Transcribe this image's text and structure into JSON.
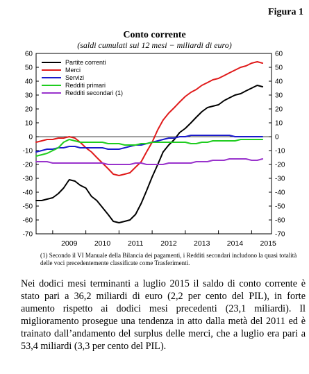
{
  "figure_label": "Figura 1",
  "title": "Conto corrente",
  "subtitle": "(saldi cumulati sui 12 mesi − miliardi di euro)",
  "footnote": "(1) Secondo il VI Manuale della Bilancia dei pagamenti, i Redditi secondari includono la quasi totalità delle voci precedentemente classificate come Trasferimenti.",
  "body_text": "Nei dodici mesi terminanti a luglio 2015 il saldo di conto corrente è stato pari a 36,2 miliardi di euro (2,2 per cento del PIL), in forte aumento rispetto ai dodici mesi precedenti (23,1 miliardi). Il miglioramento prosegue una tendenza in atto dalla metà del 2011 ed è trainato dall’andamento del surplus delle merci, che a luglio era pari a 53,4 miliardi (3,3 per cento del PIL).",
  "chart_data": {
    "type": "line",
    "title": "Conto corrente",
    "subtitle": "(saldi cumulati sui 12 mesi − miliardi di euro)",
    "x_ticks": [
      "2009",
      "2010",
      "2011",
      "2012",
      "2013",
      "2014",
      "2015"
    ],
    "x_range": [
      2008.5,
      2015.6
    ],
    "ylim": [
      -70,
      60
    ],
    "y_ticks": [
      -70,
      -60,
      -50,
      -40,
      -30,
      -20,
      -10,
      0,
      10,
      20,
      30,
      40,
      50,
      60
    ],
    "legend_position": "top-left",
    "grid": false,
    "series": [
      {
        "name": "Partite correnti",
        "color": "#000000",
        "points": [
          [
            2008.5,
            -46
          ],
          [
            2008.67,
            -46
          ],
          [
            2008.83,
            -45
          ],
          [
            2009.0,
            -44
          ],
          [
            2009.17,
            -41
          ],
          [
            2009.33,
            -37
          ],
          [
            2009.5,
            -31
          ],
          [
            2009.67,
            -32
          ],
          [
            2009.83,
            -35
          ],
          [
            2010.0,
            -37
          ],
          [
            2010.17,
            -43
          ],
          [
            2010.33,
            -46
          ],
          [
            2010.5,
            -51
          ],
          [
            2010.67,
            -56
          ],
          [
            2010.83,
            -61
          ],
          [
            2011.0,
            -62
          ],
          [
            2011.17,
            -61
          ],
          [
            2011.33,
            -60
          ],
          [
            2011.5,
            -56
          ],
          [
            2011.67,
            -48
          ],
          [
            2011.83,
            -39
          ],
          [
            2012.0,
            -29
          ],
          [
            2012.17,
            -20
          ],
          [
            2012.33,
            -11
          ],
          [
            2012.5,
            -6
          ],
          [
            2012.67,
            -2
          ],
          [
            2012.83,
            3
          ],
          [
            2013.0,
            6
          ],
          [
            2013.17,
            10
          ],
          [
            2013.33,
            14
          ],
          [
            2013.5,
            18
          ],
          [
            2013.67,
            21
          ],
          [
            2013.83,
            22
          ],
          [
            2014.0,
            23
          ],
          [
            2014.17,
            26
          ],
          [
            2014.33,
            28
          ],
          [
            2014.5,
            30
          ],
          [
            2014.67,
            31
          ],
          [
            2014.83,
            33
          ],
          [
            2015.0,
            35
          ],
          [
            2015.17,
            37
          ],
          [
            2015.33,
            36
          ]
        ]
      },
      {
        "name": "Merci",
        "color": "#e01b1b",
        "points": [
          [
            2008.5,
            -4
          ],
          [
            2008.67,
            -3
          ],
          [
            2008.83,
            -2
          ],
          [
            2009.0,
            -2
          ],
          [
            2009.17,
            -1
          ],
          [
            2009.33,
            -1
          ],
          [
            2009.5,
            0
          ],
          [
            2009.67,
            -1
          ],
          [
            2009.83,
            -4
          ],
          [
            2010.0,
            -8
          ],
          [
            2010.17,
            -11
          ],
          [
            2010.33,
            -15
          ],
          [
            2010.5,
            -19
          ],
          [
            2010.67,
            -23
          ],
          [
            2010.83,
            -27
          ],
          [
            2011.0,
            -28
          ],
          [
            2011.17,
            -27
          ],
          [
            2011.33,
            -26
          ],
          [
            2011.5,
            -22
          ],
          [
            2011.67,
            -18
          ],
          [
            2011.83,
            -11
          ],
          [
            2012.0,
            -4
          ],
          [
            2012.17,
            5
          ],
          [
            2012.33,
            12
          ],
          [
            2012.5,
            17
          ],
          [
            2012.67,
            21
          ],
          [
            2012.83,
            25
          ],
          [
            2013.0,
            29
          ],
          [
            2013.17,
            32
          ],
          [
            2013.33,
            34
          ],
          [
            2013.5,
            37
          ],
          [
            2013.67,
            39
          ],
          [
            2013.83,
            41
          ],
          [
            2014.0,
            42
          ],
          [
            2014.17,
            44
          ],
          [
            2014.33,
            46
          ],
          [
            2014.5,
            48
          ],
          [
            2014.67,
            50
          ],
          [
            2014.83,
            51
          ],
          [
            2015.0,
            53
          ],
          [
            2015.17,
            54
          ],
          [
            2015.33,
            53
          ]
        ]
      },
      {
        "name": "Servizi",
        "color": "#1a1acc",
        "points": [
          [
            2008.5,
            -11
          ],
          [
            2008.67,
            -10
          ],
          [
            2008.83,
            -9
          ],
          [
            2009.0,
            -9
          ],
          [
            2009.17,
            -8
          ],
          [
            2009.33,
            -8
          ],
          [
            2009.5,
            -7
          ],
          [
            2009.67,
            -7
          ],
          [
            2009.83,
            -8
          ],
          [
            2010.0,
            -8
          ],
          [
            2010.17,
            -8
          ],
          [
            2010.33,
            -8
          ],
          [
            2010.5,
            -8
          ],
          [
            2010.67,
            -9
          ],
          [
            2010.83,
            -9
          ],
          [
            2011.0,
            -9
          ],
          [
            2011.17,
            -8
          ],
          [
            2011.33,
            -7
          ],
          [
            2011.5,
            -6
          ],
          [
            2011.67,
            -6
          ],
          [
            2011.83,
            -5
          ],
          [
            2012.0,
            -4
          ],
          [
            2012.17,
            -3
          ],
          [
            2012.33,
            -2
          ],
          [
            2012.5,
            -1
          ],
          [
            2012.67,
            -1
          ],
          [
            2012.83,
            0
          ],
          [
            2013.0,
            0
          ],
          [
            2013.17,
            1
          ],
          [
            2013.33,
            1
          ],
          [
            2013.5,
            1
          ],
          [
            2013.67,
            1
          ],
          [
            2013.83,
            1
          ],
          [
            2014.0,
            1
          ],
          [
            2014.17,
            1
          ],
          [
            2014.33,
            1
          ],
          [
            2014.5,
            0
          ],
          [
            2014.67,
            0
          ],
          [
            2014.83,
            0
          ],
          [
            2015.0,
            0
          ],
          [
            2015.17,
            0
          ],
          [
            2015.33,
            0
          ]
        ]
      },
      {
        "name": "Redditi primari",
        "color": "#1fcc1f",
        "points": [
          [
            2008.5,
            -14
          ],
          [
            2008.67,
            -13
          ],
          [
            2008.83,
            -12
          ],
          [
            2009.0,
            -10
          ],
          [
            2009.17,
            -8
          ],
          [
            2009.33,
            -4
          ],
          [
            2009.5,
            -2
          ],
          [
            2009.67,
            -3
          ],
          [
            2009.83,
            -4
          ],
          [
            2010.0,
            -4
          ],
          [
            2010.17,
            -4
          ],
          [
            2010.33,
            -4
          ],
          [
            2010.5,
            -4
          ],
          [
            2010.67,
            -5
          ],
          [
            2010.83,
            -5
          ],
          [
            2011.0,
            -5
          ],
          [
            2011.17,
            -6
          ],
          [
            2011.33,
            -6
          ],
          [
            2011.5,
            -6
          ],
          [
            2011.67,
            -5
          ],
          [
            2011.83,
            -5
          ],
          [
            2012.0,
            -4
          ],
          [
            2012.17,
            -4
          ],
          [
            2012.33,
            -4
          ],
          [
            2012.5,
            -4
          ],
          [
            2012.67,
            -4
          ],
          [
            2012.83,
            -4
          ],
          [
            2013.0,
            -4
          ],
          [
            2013.17,
            -5
          ],
          [
            2013.33,
            -5
          ],
          [
            2013.5,
            -4
          ],
          [
            2013.67,
            -4
          ],
          [
            2013.83,
            -3
          ],
          [
            2014.0,
            -3
          ],
          [
            2014.17,
            -3
          ],
          [
            2014.33,
            -3
          ],
          [
            2014.5,
            -3
          ],
          [
            2014.67,
            -2
          ],
          [
            2014.83,
            -2
          ],
          [
            2015.0,
            -2
          ],
          [
            2015.17,
            -2
          ],
          [
            2015.33,
            -2
          ]
        ]
      },
      {
        "name": "Redditi secondari (1)",
        "color": "#9933cc",
        "points": [
          [
            2008.5,
            -18
          ],
          [
            2008.67,
            -18
          ],
          [
            2008.83,
            -18
          ],
          [
            2009.0,
            -19
          ],
          [
            2009.17,
            -19
          ],
          [
            2009.33,
            -19
          ],
          [
            2009.5,
            -19
          ],
          [
            2009.67,
            -19
          ],
          [
            2009.83,
            -19
          ],
          [
            2010.0,
            -19
          ],
          [
            2010.17,
            -19
          ],
          [
            2010.33,
            -19
          ],
          [
            2010.5,
            -19
          ],
          [
            2010.67,
            -20
          ],
          [
            2010.83,
            -20
          ],
          [
            2011.0,
            -20
          ],
          [
            2011.17,
            -20
          ],
          [
            2011.33,
            -20
          ],
          [
            2011.5,
            -19
          ],
          [
            2011.67,
            -19
          ],
          [
            2011.83,
            -20
          ],
          [
            2012.0,
            -20
          ],
          [
            2012.17,
            -20
          ],
          [
            2012.33,
            -20
          ],
          [
            2012.5,
            -19
          ],
          [
            2012.67,
            -19
          ],
          [
            2012.83,
            -19
          ],
          [
            2013.0,
            -19
          ],
          [
            2013.17,
            -19
          ],
          [
            2013.33,
            -18
          ],
          [
            2013.5,
            -18
          ],
          [
            2013.67,
            -18
          ],
          [
            2013.83,
            -17
          ],
          [
            2014.0,
            -17
          ],
          [
            2014.17,
            -17
          ],
          [
            2014.33,
            -16
          ],
          [
            2014.5,
            -16
          ],
          [
            2014.67,
            -16
          ],
          [
            2014.83,
            -16
          ],
          [
            2015.0,
            -17
          ],
          [
            2015.17,
            -17
          ],
          [
            2015.33,
            -16
          ]
        ]
      }
    ]
  }
}
